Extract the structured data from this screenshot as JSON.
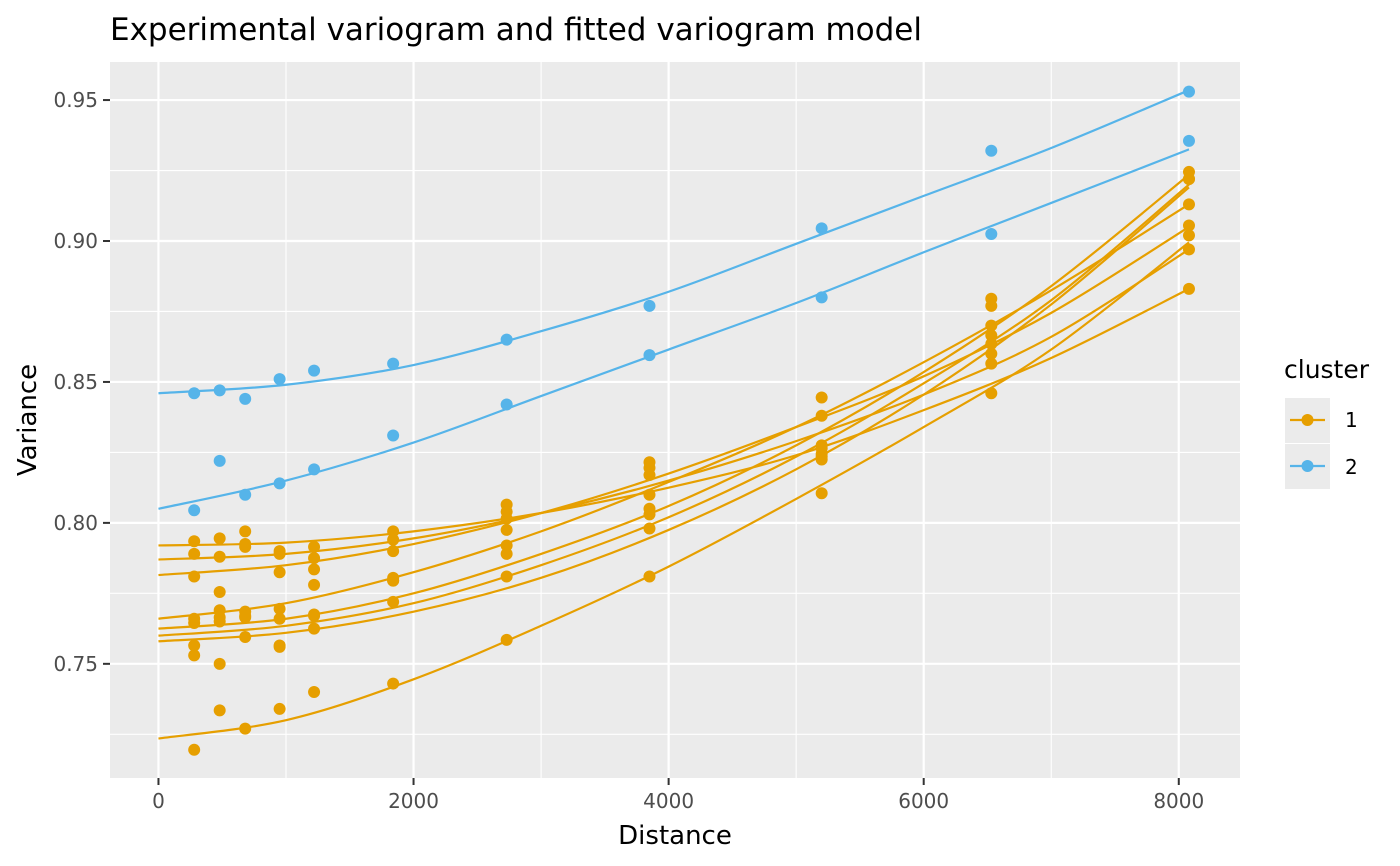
{
  "chart_data": {
    "type": "line",
    "title": "Experimental variogram and fitted variogram model",
    "xlabel": "Distance",
    "ylabel": "Variance",
    "xlim": [
      -380,
      8480
    ],
    "ylim": [
      0.7095,
      0.9635
    ],
    "x_ticks": [
      0,
      2000,
      4000,
      6000,
      8000
    ],
    "x_tick_labels": [
      "0",
      "2000",
      "4000",
      "6000",
      "8000"
    ],
    "y_ticks": [
      0.75,
      0.8,
      0.85,
      0.9,
      0.95
    ],
    "y_tick_labels": [
      "0.75",
      "0.80",
      "0.85",
      "0.90",
      "0.95"
    ],
    "grid": true,
    "panel_background": "#ebebeb",
    "legend": {
      "title": "cluster",
      "placement": "right",
      "entries": [
        {
          "label": "1",
          "color": "#E69F00"
        },
        {
          "label": "2",
          "color": "#56B4E9"
        }
      ]
    },
    "x": [
      280,
      480,
      680,
      950,
      1220,
      1840,
      2730,
      3850,
      5200,
      6530,
      8080
    ],
    "series": [
      {
        "cluster": "2",
        "color": "#56B4E9",
        "points": [
          0.846,
          0.847,
          0.844,
          0.851,
          0.854,
          0.8565,
          0.865,
          0.877,
          0.9045,
          0.932,
          0.953
        ],
        "fit": [
          [
            0,
            0.846
          ],
          [
            1000,
            0.849
          ],
          [
            2000,
            0.856
          ],
          [
            3000,
            0.868
          ],
          [
            4000,
            0.882
          ],
          [
            5000,
            0.899
          ],
          [
            6000,
            0.916
          ],
          [
            7000,
            0.933
          ],
          [
            8080,
            0.9535
          ]
        ]
      },
      {
        "cluster": "2",
        "color": "#56B4E9",
        "points": [
          0.8045,
          0.822,
          0.81,
          0.814,
          0.819,
          0.831,
          0.842,
          0.8595,
          0.88,
          0.9025,
          0.9355
        ],
        "fit": [
          [
            0,
            0.805
          ],
          [
            1000,
            0.815
          ],
          [
            2000,
            0.8285
          ],
          [
            3000,
            0.845
          ],
          [
            4000,
            0.8615
          ],
          [
            5000,
            0.878
          ],
          [
            6000,
            0.896
          ],
          [
            7000,
            0.9135
          ],
          [
            8080,
            0.9325
          ]
        ]
      },
      {
        "cluster": "1",
        "color": "#E69F00",
        "points": [
          0.7195,
          0.7335,
          0.727,
          0.734,
          0.74,
          0.743,
          0.7585,
          0.781,
          0.8105,
          0.846,
          0.902
        ],
        "fit": [
          [
            0,
            0.7235
          ],
          [
            1000,
            0.73
          ],
          [
            2000,
            0.7445
          ],
          [
            3000,
            0.7635
          ],
          [
            4000,
            0.7845
          ],
          [
            5000,
            0.8085
          ],
          [
            6000,
            0.834
          ],
          [
            7000,
            0.8615
          ],
          [
            8080,
            0.8995
          ]
        ]
      },
      {
        "cluster": "1",
        "color": "#E69F00",
        "points": [
          0.7935,
          0.7945,
          0.797,
          0.79,
          0.7915,
          0.797,
          0.8065,
          0.8195,
          0.8445,
          0.8565,
          0.883
        ],
        "fit": [
          [
            0,
            0.792
          ],
          [
            1000,
            0.793
          ],
          [
            2000,
            0.797
          ],
          [
            3000,
            0.8035
          ],
          [
            4000,
            0.8125
          ],
          [
            5000,
            0.824
          ],
          [
            6000,
            0.84
          ],
          [
            7000,
            0.8585
          ],
          [
            8080,
            0.883
          ]
        ]
      },
      {
        "cluster": "1",
        "color": "#E69F00",
        "points": [
          0.789,
          0.788,
          0.7915,
          0.789,
          0.7875,
          0.794,
          0.804,
          0.817,
          0.838,
          0.86,
          0.897
        ],
        "fit": [
          [
            0,
            0.787
          ],
          [
            1000,
            0.789
          ],
          [
            2000,
            0.7945
          ],
          [
            3000,
            0.8035
          ],
          [
            4000,
            0.815
          ],
          [
            5000,
            0.829
          ],
          [
            6000,
            0.8455
          ],
          [
            7000,
            0.866
          ],
          [
            8080,
            0.897
          ]
        ]
      },
      {
        "cluster": "1",
        "color": "#E69F00",
        "points": [
          0.781,
          0.7755,
          0.7925,
          0.7825,
          0.7835,
          0.79,
          0.8015,
          0.8215,
          0.8275,
          0.8665,
          0.9055
        ],
        "fit": [
          [
            0,
            0.7815
          ],
          [
            1000,
            0.785
          ],
          [
            2000,
            0.7925
          ],
          [
            3000,
            0.8035
          ],
          [
            4000,
            0.8175
          ],
          [
            5000,
            0.834
          ],
          [
            6000,
            0.852
          ],
          [
            7000,
            0.8745
          ],
          [
            8080,
            0.905
          ]
        ]
      },
      {
        "cluster": "1",
        "color": "#E69F00",
        "points": [
          0.7645,
          0.769,
          0.7685,
          0.7695,
          0.778,
          0.7805,
          0.7975,
          0.81,
          0.8225,
          0.8635,
          0.913
        ],
        "fit": [
          [
            0,
            0.766
          ],
          [
            1000,
            0.7715
          ],
          [
            2000,
            0.7825
          ],
          [
            3000,
            0.797
          ],
          [
            4000,
            0.8145
          ],
          [
            5000,
            0.834
          ],
          [
            6000,
            0.857
          ],
          [
            7000,
            0.8825
          ],
          [
            8080,
            0.913
          ]
        ]
      },
      {
        "cluster": "1",
        "color": "#E69F00",
        "points": [
          0.766,
          0.7665,
          0.7665,
          0.766,
          0.767,
          0.772,
          0.792,
          0.803,
          0.8245,
          0.87,
          0.9245
        ],
        "fit": [
          [
            0,
            0.7625
          ],
          [
            1000,
            0.766
          ],
          [
            2000,
            0.775
          ],
          [
            3000,
            0.789
          ],
          [
            4000,
            0.806
          ],
          [
            5000,
            0.8275
          ],
          [
            6000,
            0.8535
          ],
          [
            7000,
            0.884
          ],
          [
            8080,
            0.9235
          ]
        ]
      },
      {
        "cluster": "1",
        "color": "#E69F00",
        "points": [
          0.7565,
          0.765,
          0.767,
          0.756,
          0.7675,
          0.7795,
          0.789,
          0.805,
          0.8265,
          0.877,
          0.922
        ],
        "fit": [
          [
            0,
            0.76
          ],
          [
            1000,
            0.7635
          ],
          [
            2000,
            0.7715
          ],
          [
            3000,
            0.785
          ],
          [
            4000,
            0.802
          ],
          [
            5000,
            0.8235
          ],
          [
            6000,
            0.8495
          ],
          [
            7000,
            0.879
          ],
          [
            8080,
            0.92
          ]
        ]
      },
      {
        "cluster": "1",
        "color": "#E69F00",
        "points": [
          0.753,
          0.75,
          0.7595,
          0.7565,
          0.7625,
          0.7795,
          0.781,
          0.798,
          0.8235,
          0.8795,
          0.922
        ],
        "fit": [
          [
            0,
            0.758
          ],
          [
            1000,
            0.761
          ],
          [
            2000,
            0.7685
          ],
          [
            3000,
            0.7805
          ],
          [
            4000,
            0.7975
          ],
          [
            5000,
            0.819
          ],
          [
            6000,
            0.8455
          ],
          [
            7000,
            0.8775
          ],
          [
            8080,
            0.919
          ]
        ]
      }
    ]
  }
}
